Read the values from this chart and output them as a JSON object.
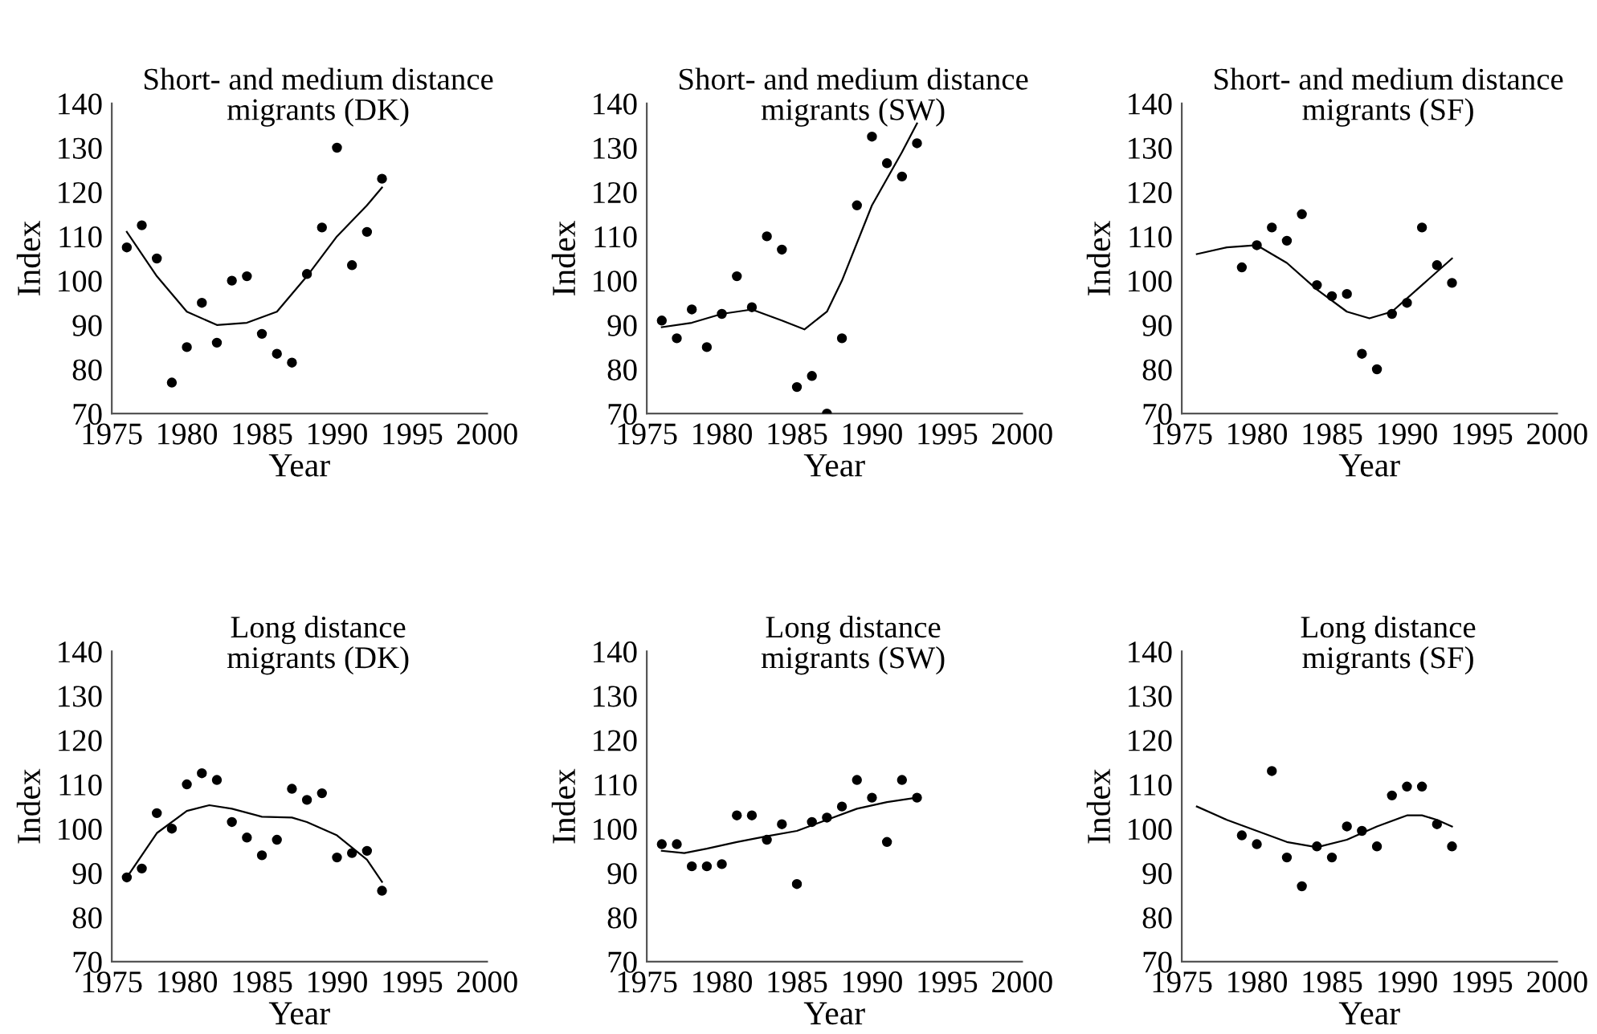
{
  "chart_data": [
    {
      "type": "scatter",
      "title": "Short- and medium distance\nmigrants (DK)",
      "xlabel": "Year",
      "ylabel": "Index",
      "xlim": [
        1975,
        2000
      ],
      "ylim": [
        70,
        140
      ],
      "xticks": [
        1975,
        1980,
        1985,
        1990,
        1995,
        2000
      ],
      "yticks": [
        70,
        80,
        90,
        100,
        110,
        120,
        130,
        140
      ],
      "grid": false,
      "legend": false,
      "series": [
        {
          "marker": "circle",
          "color": "#000000",
          "x": [
            1976,
            1977,
            1978,
            1979,
            1980,
            1981,
            1982,
            1983,
            1984,
            1985,
            1986,
            1987,
            1988,
            1989,
            1990,
            1991,
            1992,
            1993
          ],
          "values": [
            107.5,
            112.5,
            105,
            77,
            85,
            95,
            86,
            100,
            101,
            88,
            83.5,
            81.5,
            101.5,
            112,
            130,
            103.5,
            111,
            123
          ]
        },
        {
          "type": "line",
          "color": "#000000",
          "line_style": "solid",
          "x": [
            1976,
            1978,
            1980,
            1982,
            1984,
            1986,
            1988,
            1990,
            1992,
            1993
          ],
          "values": [
            111,
            101,
            93,
            90,
            90.5,
            93,
            101,
            110,
            117,
            121
          ]
        }
      ]
    },
    {
      "type": "scatter",
      "title": "Short- and medium distance\nmigrants (SW)",
      "xlabel": "Year",
      "ylabel": "Index",
      "xlim": [
        1975,
        2000
      ],
      "ylim": [
        70,
        140
      ],
      "xticks": [
        1975,
        1980,
        1985,
        1990,
        1995,
        2000
      ],
      "yticks": [
        70,
        80,
        90,
        100,
        110,
        120,
        130,
        140
      ],
      "grid": false,
      "legend": false,
      "series": [
        {
          "marker": "circle",
          "color": "#000000",
          "x": [
            1976,
            1977,
            1978,
            1979,
            1980,
            1981,
            1982,
            1983,
            1984,
            1985,
            1986,
            1987,
            1988,
            1989,
            1990,
            1991,
            1992,
            1993
          ],
          "values": [
            91,
            87,
            93.5,
            85,
            92.5,
            101,
            94,
            110,
            107,
            76,
            78.5,
            70,
            87,
            117,
            132.5,
            126.5,
            123.5,
            131
          ]
        },
        {
          "type": "line",
          "color": "#000000",
          "line_style": "solid",
          "x": [
            1976,
            1978,
            1980,
            1982,
            1984,
            1985.5,
            1987,
            1988,
            1990,
            1992,
            1993
          ],
          "values": [
            89.5,
            90.5,
            92.5,
            93.5,
            91,
            89,
            93,
            100,
            117,
            129,
            135.5
          ]
        }
      ]
    },
    {
      "type": "scatter",
      "title": "Short- and medium distance\nmigrants (SF)",
      "xlabel": "Year",
      "ylabel": "Index",
      "xlim": [
        1975,
        2000
      ],
      "ylim": [
        70,
        140
      ],
      "xticks": [
        1975,
        1980,
        1985,
        1990,
        1995,
        2000
      ],
      "yticks": [
        70,
        80,
        90,
        100,
        110,
        120,
        130,
        140
      ],
      "grid": false,
      "legend": false,
      "series": [
        {
          "marker": "circle",
          "color": "#000000",
          "x": [
            1979,
            1980,
            1981,
            1982,
            1983,
            1984,
            1985,
            1986,
            1987,
            1988,
            1989,
            1990,
            1991,
            1992,
            1993
          ],
          "values": [
            103,
            108,
            112,
            109,
            115,
            99,
            96.5,
            97,
            83.5,
            80,
            92.5,
            95,
            112,
            103.5,
            99.5
          ]
        },
        {
          "type": "line",
          "color": "#000000",
          "line_style": "solid",
          "x": [
            1976,
            1978,
            1980,
            1982,
            1984,
            1986,
            1987.5,
            1989,
            1991,
            1993
          ],
          "values": [
            106,
            107.5,
            108,
            104,
            98,
            93,
            91.5,
            93,
            99,
            105
          ]
        }
      ]
    },
    {
      "type": "scatter",
      "title": "Long distance\nmigrants (DK)",
      "xlabel": "Year",
      "ylabel": "Index",
      "xlim": [
        1975,
        2000
      ],
      "ylim": [
        70,
        140
      ],
      "xticks": [
        1975,
        1980,
        1985,
        1990,
        1995,
        2000
      ],
      "yticks": [
        70,
        80,
        90,
        100,
        110,
        120,
        130,
        140
      ],
      "grid": false,
      "legend": false,
      "series": [
        {
          "marker": "circle",
          "color": "#000000",
          "x": [
            1976,
            1977,
            1978,
            1979,
            1980,
            1981,
            1982,
            1983,
            1984,
            1985,
            1986,
            1987,
            1988,
            1989,
            1990,
            1991,
            1992,
            1993
          ],
          "values": [
            89,
            91,
            103.5,
            100,
            110,
            112.5,
            111,
            101.5,
            98,
            94,
            97.5,
            109,
            106.5,
            108,
            93.5,
            94.5,
            95,
            86
          ]
        },
        {
          "type": "line",
          "color": "#000000",
          "line_style": "solid",
          "x": [
            1976,
            1978,
            1980,
            1981.5,
            1983,
            1985,
            1987,
            1988,
            1990,
            1992,
            1993
          ],
          "values": [
            89,
            99,
            104,
            105.3,
            104.5,
            102.7,
            102.5,
            101.5,
            98.5,
            93,
            88
          ]
        }
      ]
    },
    {
      "type": "scatter",
      "title": "Long distance\nmigrants (SW)",
      "xlabel": "Year",
      "ylabel": "Index",
      "xlim": [
        1975,
        2000
      ],
      "ylim": [
        70,
        140
      ],
      "xticks": [
        1975,
        1980,
        1985,
        1990,
        1995,
        2000
      ],
      "yticks": [
        70,
        80,
        90,
        100,
        110,
        120,
        130,
        140
      ],
      "grid": false,
      "legend": false,
      "series": [
        {
          "marker": "circle",
          "color": "#000000",
          "x": [
            1976,
            1977,
            1978,
            1979,
            1980,
            1981,
            1982,
            1983,
            1984,
            1985,
            1986,
            1987,
            1988,
            1989,
            1990,
            1991,
            1992,
            1993
          ],
          "values": [
            96.5,
            96.5,
            91.5,
            91.5,
            92,
            103,
            103,
            97.5,
            101,
            87.5,
            101.5,
            102.5,
            105,
            111,
            107,
            97,
            111,
            107
          ]
        },
        {
          "type": "line",
          "color": "#000000",
          "line_style": "solid",
          "x": [
            1976,
            1977.5,
            1979,
            1981,
            1983,
            1985,
            1987,
            1989,
            1991,
            1993
          ],
          "values": [
            95,
            94.5,
            95.5,
            97,
            98.3,
            99.5,
            102,
            104.5,
            106,
            107
          ]
        }
      ]
    },
    {
      "type": "scatter",
      "title": "Long distance\nmigrants (SF)",
      "xlabel": "Year",
      "ylabel": "Index",
      "xlim": [
        1975,
        2000
      ],
      "ylim": [
        70,
        140
      ],
      "xticks": [
        1975,
        1980,
        1985,
        1990,
        1995,
        2000
      ],
      "yticks": [
        70,
        80,
        90,
        100,
        110,
        120,
        130,
        140
      ],
      "grid": false,
      "legend": false,
      "series": [
        {
          "marker": "circle",
          "color": "#000000",
          "x": [
            1979,
            1980,
            1981,
            1982,
            1983,
            1984,
            1985,
            1986,
            1987,
            1988,
            1989,
            1990,
            1991,
            1992,
            1993
          ],
          "values": [
            98.5,
            96.5,
            113,
            93.5,
            87,
            96,
            93.5,
            100.5,
            99.5,
            96,
            107.5,
            109.5,
            109.5,
            101,
            96
          ]
        },
        {
          "type": "line",
          "color": "#000000",
          "line_style": "solid",
          "x": [
            1976,
            1978,
            1980,
            1982,
            1984,
            1986,
            1988,
            1990,
            1991,
            1992,
            1993
          ],
          "values": [
            105,
            102,
            99.5,
            97,
            95.8,
            97.5,
            100.5,
            103,
            103,
            102,
            100.5
          ]
        }
      ]
    }
  ]
}
